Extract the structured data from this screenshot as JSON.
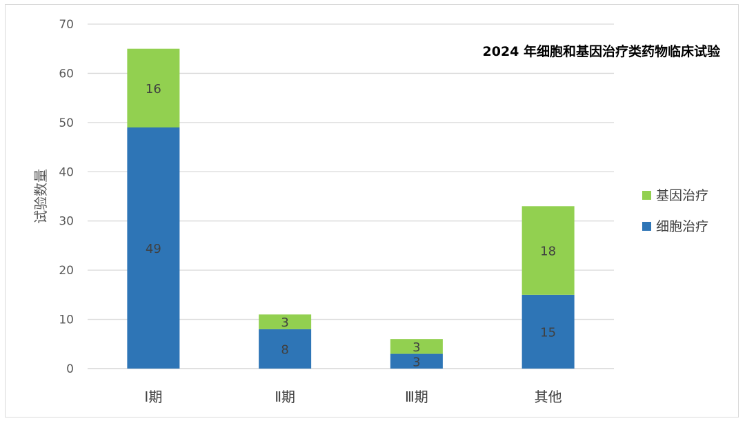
{
  "chart_data": {
    "type": "bar",
    "stacked": true,
    "title": "2024 年细胞和基因治疗类药物临床试验",
    "xlabel": "",
    "ylabel": "试验数量",
    "categories": [
      "Ⅰ期",
      "Ⅱ期",
      "Ⅲ期",
      "其他"
    ],
    "series": [
      {
        "name": "细胞治疗",
        "values": [
          49,
          8,
          3,
          15
        ],
        "color": "#2e75b6"
      },
      {
        "name": "基因治疗",
        "values": [
          16,
          3,
          3,
          18
        ],
        "color": "#92d050"
      }
    ],
    "ylim": [
      0,
      70
    ],
    "yticks": [
      0,
      10,
      20,
      30,
      40,
      50,
      60,
      70
    ],
    "grid": true,
    "legend": "right",
    "data_labels": true
  }
}
